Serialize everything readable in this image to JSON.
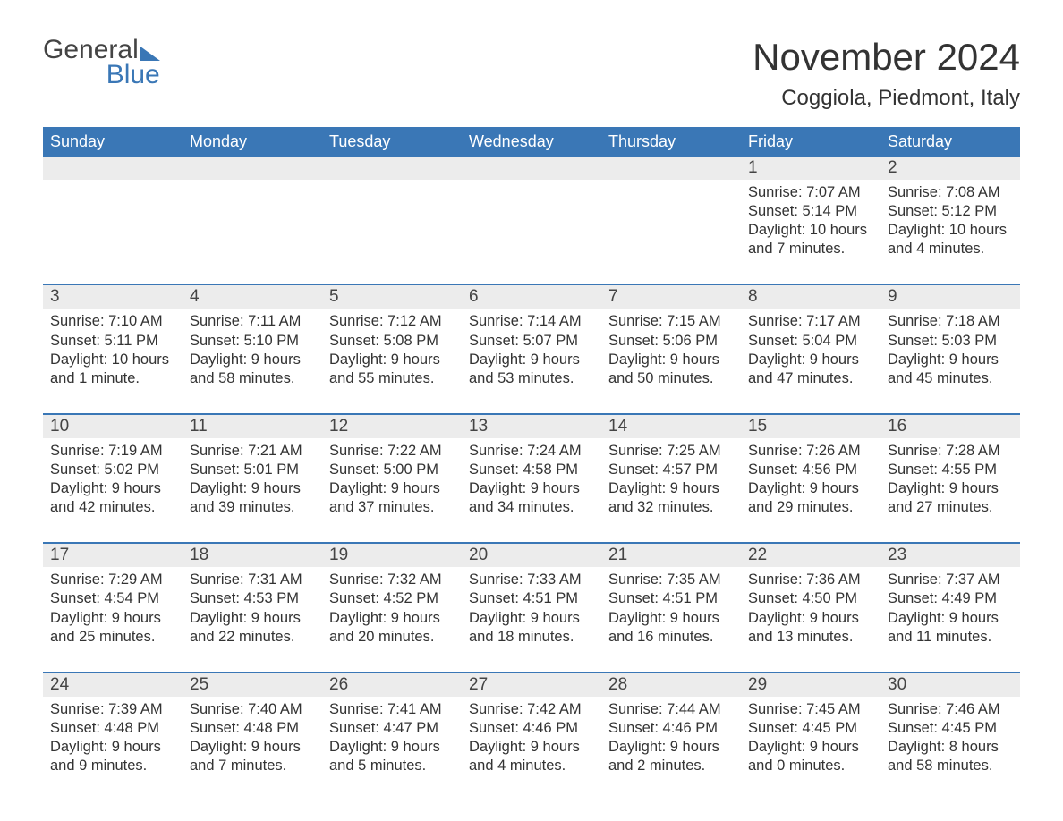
{
  "logo": {
    "word1": "General",
    "word2": "Blue"
  },
  "title": "November 2024",
  "location": "Coggiola, Piedmont, Italy",
  "colors": {
    "brand_blue": "#3a77b6",
    "row_gray": "#ececec",
    "text": "#333333",
    "background": "#ffffff"
  },
  "typography": {
    "title_fontsize": 42,
    "location_fontsize": 24,
    "dow_fontsize": 18,
    "daynum_fontsize": 19,
    "body_fontsize": 16.5,
    "font_family": "Arial"
  },
  "calendar": {
    "day_names": [
      "Sunday",
      "Monday",
      "Tuesday",
      "Wednesday",
      "Thursday",
      "Friday",
      "Saturday"
    ],
    "week_top_border_color": "#3a77b6",
    "week_top_border_width": 2,
    "weeks": [
      [
        null,
        null,
        null,
        null,
        null,
        {
          "n": "1",
          "sunrise": "Sunrise: 7:07 AM",
          "sunset": "Sunset: 5:14 PM",
          "daylight": "Daylight: 10 hours and 7 minutes."
        },
        {
          "n": "2",
          "sunrise": "Sunrise: 7:08 AM",
          "sunset": "Sunset: 5:12 PM",
          "daylight": "Daylight: 10 hours and 4 minutes."
        }
      ],
      [
        {
          "n": "3",
          "sunrise": "Sunrise: 7:10 AM",
          "sunset": "Sunset: 5:11 PM",
          "daylight": "Daylight: 10 hours and 1 minute."
        },
        {
          "n": "4",
          "sunrise": "Sunrise: 7:11 AM",
          "sunset": "Sunset: 5:10 PM",
          "daylight": "Daylight: 9 hours and 58 minutes."
        },
        {
          "n": "5",
          "sunrise": "Sunrise: 7:12 AM",
          "sunset": "Sunset: 5:08 PM",
          "daylight": "Daylight: 9 hours and 55 minutes."
        },
        {
          "n": "6",
          "sunrise": "Sunrise: 7:14 AM",
          "sunset": "Sunset: 5:07 PM",
          "daylight": "Daylight: 9 hours and 53 minutes."
        },
        {
          "n": "7",
          "sunrise": "Sunrise: 7:15 AM",
          "sunset": "Sunset: 5:06 PM",
          "daylight": "Daylight: 9 hours and 50 minutes."
        },
        {
          "n": "8",
          "sunrise": "Sunrise: 7:17 AM",
          "sunset": "Sunset: 5:04 PM",
          "daylight": "Daylight: 9 hours and 47 minutes."
        },
        {
          "n": "9",
          "sunrise": "Sunrise: 7:18 AM",
          "sunset": "Sunset: 5:03 PM",
          "daylight": "Daylight: 9 hours and 45 minutes."
        }
      ],
      [
        {
          "n": "10",
          "sunrise": "Sunrise: 7:19 AM",
          "sunset": "Sunset: 5:02 PM",
          "daylight": "Daylight: 9 hours and 42 minutes."
        },
        {
          "n": "11",
          "sunrise": "Sunrise: 7:21 AM",
          "sunset": "Sunset: 5:01 PM",
          "daylight": "Daylight: 9 hours and 39 minutes."
        },
        {
          "n": "12",
          "sunrise": "Sunrise: 7:22 AM",
          "sunset": "Sunset: 5:00 PM",
          "daylight": "Daylight: 9 hours and 37 minutes."
        },
        {
          "n": "13",
          "sunrise": "Sunrise: 7:24 AM",
          "sunset": "Sunset: 4:58 PM",
          "daylight": "Daylight: 9 hours and 34 minutes."
        },
        {
          "n": "14",
          "sunrise": "Sunrise: 7:25 AM",
          "sunset": "Sunset: 4:57 PM",
          "daylight": "Daylight: 9 hours and 32 minutes."
        },
        {
          "n": "15",
          "sunrise": "Sunrise: 7:26 AM",
          "sunset": "Sunset: 4:56 PM",
          "daylight": "Daylight: 9 hours and 29 minutes."
        },
        {
          "n": "16",
          "sunrise": "Sunrise: 7:28 AM",
          "sunset": "Sunset: 4:55 PM",
          "daylight": "Daylight: 9 hours and 27 minutes."
        }
      ],
      [
        {
          "n": "17",
          "sunrise": "Sunrise: 7:29 AM",
          "sunset": "Sunset: 4:54 PM",
          "daylight": "Daylight: 9 hours and 25 minutes."
        },
        {
          "n": "18",
          "sunrise": "Sunrise: 7:31 AM",
          "sunset": "Sunset: 4:53 PM",
          "daylight": "Daylight: 9 hours and 22 minutes."
        },
        {
          "n": "19",
          "sunrise": "Sunrise: 7:32 AM",
          "sunset": "Sunset: 4:52 PM",
          "daylight": "Daylight: 9 hours and 20 minutes."
        },
        {
          "n": "20",
          "sunrise": "Sunrise: 7:33 AM",
          "sunset": "Sunset: 4:51 PM",
          "daylight": "Daylight: 9 hours and 18 minutes."
        },
        {
          "n": "21",
          "sunrise": "Sunrise: 7:35 AM",
          "sunset": "Sunset: 4:51 PM",
          "daylight": "Daylight: 9 hours and 16 minutes."
        },
        {
          "n": "22",
          "sunrise": "Sunrise: 7:36 AM",
          "sunset": "Sunset: 4:50 PM",
          "daylight": "Daylight: 9 hours and 13 minutes."
        },
        {
          "n": "23",
          "sunrise": "Sunrise: 7:37 AM",
          "sunset": "Sunset: 4:49 PM",
          "daylight": "Daylight: 9 hours and 11 minutes."
        }
      ],
      [
        {
          "n": "24",
          "sunrise": "Sunrise: 7:39 AM",
          "sunset": "Sunset: 4:48 PM",
          "daylight": "Daylight: 9 hours and 9 minutes."
        },
        {
          "n": "25",
          "sunrise": "Sunrise: 7:40 AM",
          "sunset": "Sunset: 4:48 PM",
          "daylight": "Daylight: 9 hours and 7 minutes."
        },
        {
          "n": "26",
          "sunrise": "Sunrise: 7:41 AM",
          "sunset": "Sunset: 4:47 PM",
          "daylight": "Daylight: 9 hours and 5 minutes."
        },
        {
          "n": "27",
          "sunrise": "Sunrise: 7:42 AM",
          "sunset": "Sunset: 4:46 PM",
          "daylight": "Daylight: 9 hours and 4 minutes."
        },
        {
          "n": "28",
          "sunrise": "Sunrise: 7:44 AM",
          "sunset": "Sunset: 4:46 PM",
          "daylight": "Daylight: 9 hours and 2 minutes."
        },
        {
          "n": "29",
          "sunrise": "Sunrise: 7:45 AM",
          "sunset": "Sunset: 4:45 PM",
          "daylight": "Daylight: 9 hours and 0 minutes."
        },
        {
          "n": "30",
          "sunrise": "Sunrise: 7:46 AM",
          "sunset": "Sunset: 4:45 PM",
          "daylight": "Daylight: 8 hours and 58 minutes."
        }
      ]
    ]
  }
}
